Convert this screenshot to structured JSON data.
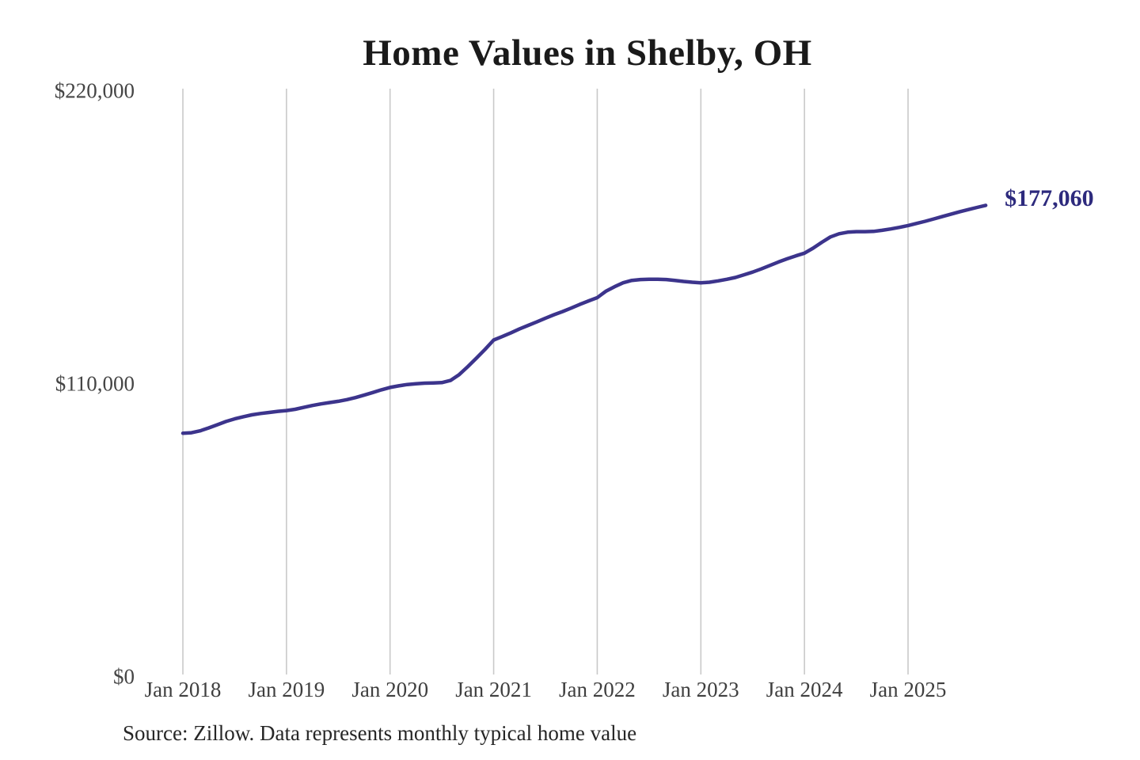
{
  "page": {
    "background_color": "#ffffff"
  },
  "chart": {
    "title": "Home Values in Shelby, OH",
    "source_note": "Source: Zillow. Data represents monthly typical home value",
    "colors": {
      "line": "#3c348c",
      "end_label": "#2d2a7d",
      "gridline": "#c9c9c9",
      "title": "#1a1a1a",
      "y_axis_label": "#454545",
      "x_axis_label": "#3f3f3f",
      "source": "#262626"
    }
  },
  "chart_data": {
    "type": "line",
    "title": "Home Values in Shelby, OH",
    "unit": "USD",
    "frequency": "monthly",
    "start_month": "2018-01",
    "end_month": "2025-10",
    "values": [
      91500,
      91700,
      92400,
      93500,
      94700,
      95900,
      96900,
      97700,
      98400,
      98900,
      99300,
      99700,
      100000,
      100500,
      101200,
      101900,
      102500,
      103000,
      103500,
      104100,
      104900,
      105800,
      106800,
      107800,
      108700,
      109300,
      109800,
      110100,
      110300,
      110400,
      110500,
      111300,
      113500,
      116500,
      119700,
      123000,
      126500,
      127800,
      129200,
      130700,
      132000,
      133300,
      134700,
      136000,
      137200,
      138500,
      139900,
      141200,
      142400,
      144800,
      146500,
      148000,
      148900,
      149200,
      149300,
      149300,
      149200,
      148900,
      148500,
      148200,
      148000,
      148200,
      148700,
      149300,
      150000,
      151000,
      152000,
      153200,
      154500,
      155800,
      157000,
      158100,
      159100,
      161000,
      163200,
      165200,
      166400,
      167000,
      167200,
      167200,
      167300,
      167700,
      168200,
      168800,
      169500,
      170300,
      171100,
      172000,
      172900,
      173800,
      174700,
      175500,
      176300,
      177060
    ],
    "last_value": 177060,
    "last_point_label": "$177,060",
    "x_tick_labels": [
      "Jan 2018",
      "Jan 2019",
      "Jan 2020",
      "Jan 2021",
      "Jan 2022",
      "Jan 2023",
      "Jan 2024",
      "Jan 2025"
    ],
    "y_ticks": [
      {
        "label": "$0",
        "value": 0
      },
      {
        "label": "$110,000",
        "value": 110000
      },
      {
        "label": "$220,000",
        "value": 220000
      }
    ],
    "ylim": [
      0,
      220000
    ],
    "grid": "vertical-only",
    "legend": "none"
  }
}
